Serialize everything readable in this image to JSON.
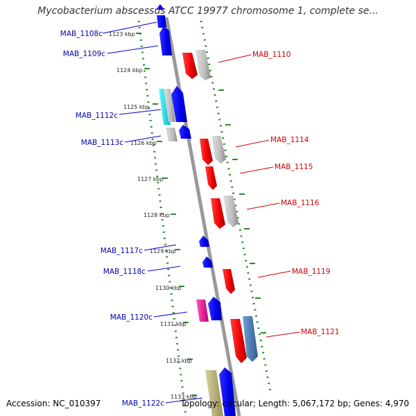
{
  "title": "Mycobacterium abscessus ATCC 19977 chromosome 1, complete se...",
  "footer": {
    "accession": "Accession: NC_010397",
    "summary": "Topology: circular; Length: 5,067,172 bp; Genes: 4,970"
  },
  "colors": {
    "reverse_strand_label": "#0000b0",
    "forward_strand_label": "#cc0000",
    "backbone": "#888888",
    "tick": "#2a8a2a"
  },
  "ticks": [
    "1123 kbp",
    "1124 kbp",
    "1125 kbp",
    "1126 kbp",
    "1127 kbp",
    "1128 kbp",
    "1129 kbp",
    "1130 kbp",
    "1131 kbp",
    "1132 kbp",
    "1133 kbp"
  ],
  "genes_reverse": [
    "MAB_1108c",
    "MAB_1109c",
    "MAB_1112c",
    "MAB_1113c",
    "MAB_1117c",
    "MAB_1118c",
    "MAB_1120c",
    "MAB_1122c"
  ],
  "genes_forward": [
    "MAB_1110",
    "MAB_1114",
    "MAB_1115",
    "MAB_1116",
    "MAB_1119",
    "MAB_1121"
  ]
}
